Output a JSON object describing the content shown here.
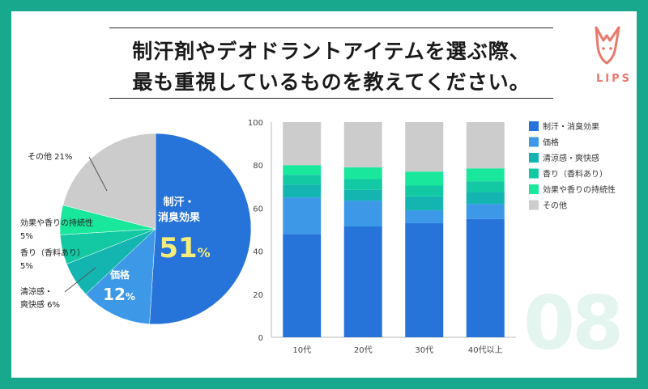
{
  "title": {
    "line1": "制汗剤やデオドラントアイテムを選ぶ際、",
    "line2": "最も重視しているものを教えてください。"
  },
  "brand": {
    "logo_text": "LIPS",
    "color": "#e8796b"
  },
  "watermark": "08",
  "chart_data": [
    {
      "type": "pie",
      "slices": [
        {
          "label": "制汗・消臭効果",
          "value": 51,
          "color": "#2673d9"
        },
        {
          "label": "価格",
          "value": 12,
          "color": "#3d99e8"
        },
        {
          "label": "清涼感・爽快感",
          "value": 6,
          "color": "#14b5b0"
        },
        {
          "label": "香り（香料あり）",
          "value": 5,
          "color": "#12c9a3"
        },
        {
          "label": "効果や香りの持続性",
          "value": 5,
          "color": "#18e79c"
        },
        {
          "label": "その他",
          "value": 21,
          "color": "#cccccc"
        }
      ],
      "callouts": {
        "main_line1": "制汗・",
        "main_line2": "消臭効果",
        "main_value": "51",
        "price_label": "価格",
        "price_value": "12",
        "percent": "%",
        "other": "その他 21%",
        "sustain_line1": "効果や香りの持続性",
        "sustain_line2": "5%",
        "scent_line1": "香り（香料あり）",
        "scent_line2": "5%",
        "cool_line1": "清涼感・",
        "cool_line2": "爽快感 6%"
      }
    },
    {
      "type": "bar",
      "stacked": true,
      "categories": [
        "10代",
        "20代",
        "30代",
        "40代以上"
      ],
      "ylim": [
        0,
        100
      ],
      "yticks": [
        "0",
        "20",
        "40",
        "60",
        "80",
        "100"
      ],
      "series": [
        {
          "name": "制汗・消臭効果",
          "values": [
            48,
            51.5,
            53,
            55
          ],
          "color": "#2673d9"
        },
        {
          "name": "価格",
          "values": [
            17,
            12,
            6,
            7
          ],
          "color": "#3d99e8"
        },
        {
          "name": "清涼感・爽快感",
          "values": [
            6,
            5,
            6.5,
            5.5
          ],
          "color": "#14b5b0"
        },
        {
          "name": "香り（香料あり）",
          "values": [
            4.5,
            5,
            5,
            5
          ],
          "color": "#12c9a3"
        },
        {
          "name": "効果や香りの持続性",
          "values": [
            4.5,
            5.5,
            6.5,
            6
          ],
          "color": "#18e79c"
        },
        {
          "name": "その他",
          "values": [
            20,
            21,
            23,
            21.5
          ],
          "color": "#cccccc"
        }
      ],
      "legend_position": "right",
      "grid": false
    }
  ]
}
